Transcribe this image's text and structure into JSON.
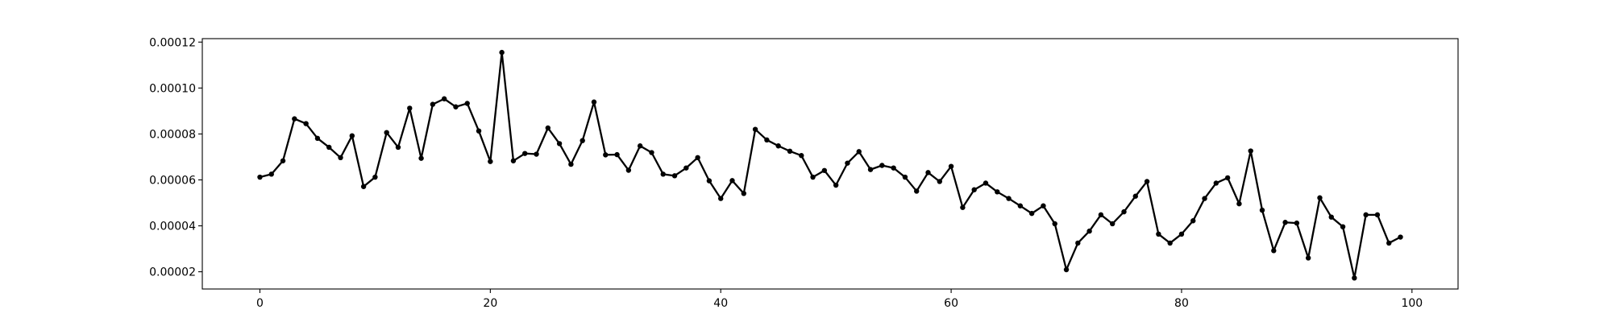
{
  "chart_data": {
    "type": "line",
    "title": "",
    "xlabel": "",
    "ylabel": "",
    "xlim": [
      -5,
      104
    ],
    "ylim": [
      1.25e-05,
      0.0001215
    ],
    "xticks": [
      0,
      20,
      40,
      60,
      80,
      100
    ],
    "xtick_labels": [
      "0",
      "20",
      "40",
      "60",
      "80",
      "100"
    ],
    "yticks": [
      2e-05,
      4e-05,
      6e-05,
      8e-05,
      0.0001,
      0.00012
    ],
    "ytick_labels": [
      "0.00002",
      "0.00004",
      "0.00006",
      "0.00008",
      "0.00010",
      "0.00012"
    ],
    "grid": false,
    "series": [
      {
        "color": "#000000",
        "marker": "circle",
        "x": [
          0,
          1,
          2,
          3,
          4,
          5,
          6,
          7,
          8,
          9,
          10,
          11,
          12,
          13,
          14,
          15,
          16,
          17,
          18,
          19,
          20,
          21,
          22,
          23,
          24,
          25,
          26,
          27,
          28,
          29,
          30,
          31,
          32,
          33,
          34,
          35,
          36,
          37,
          38,
          39,
          40,
          41,
          42,
          43,
          44,
          45,
          46,
          47,
          48,
          49,
          50,
          51,
          52,
          53,
          54,
          55,
          56,
          57,
          58,
          59,
          60,
          61,
          62,
          63,
          64,
          65,
          66,
          67,
          68,
          69,
          70,
          71,
          72,
          73,
          74,
          75,
          76,
          77,
          78,
          79,
          80,
          81,
          82,
          83,
          84,
          85,
          86,
          87,
          88,
          89,
          90,
          91,
          92,
          93,
          94,
          95,
          96,
          97,
          98,
          99
        ],
        "values": [
          6.12e-05,
          6.25e-05,
          6.83e-05,
          8.66e-05,
          8.45e-05,
          7.81e-05,
          7.42e-05,
          6.97e-05,
          7.92e-05,
          5.71e-05,
          6.12e-05,
          8.06e-05,
          7.42e-05,
          9.12e-05,
          6.94e-05,
          9.29e-05,
          9.53e-05,
          9.18e-05,
          9.33e-05,
          8.13e-05,
          6.8e-05,
          0.0001155,
          6.83e-05,
          7.15e-05,
          7.12e-05,
          8.26e-05,
          7.58e-05,
          6.68e-05,
          7.71e-05,
          9.39e-05,
          7.09e-05,
          7.1e-05,
          6.42e-05,
          7.48e-05,
          7.19e-05,
          6.25e-05,
          6.18e-05,
          6.52e-05,
          6.97e-05,
          5.96e-05,
          5.19e-05,
          5.97e-05,
          5.41e-05,
          8.2e-05,
          7.74e-05,
          7.48e-05,
          7.25e-05,
          7.06e-05,
          6.12e-05,
          6.41e-05,
          5.77e-05,
          6.73e-05,
          7.23e-05,
          6.45e-05,
          6.63e-05,
          6.52e-05,
          6.12e-05,
          5.51e-05,
          6.32e-05,
          5.93e-05,
          6.59e-05,
          4.8e-05,
          5.57e-05,
          5.86e-05,
          5.48e-05,
          5.19e-05,
          4.87e-05,
          4.54e-05,
          4.87e-05,
          4.09e-05,
          2.09e-05,
          3.25e-05,
          3.77e-05,
          4.48e-05,
          4.09e-05,
          4.61e-05,
          5.29e-05,
          5.93e-05,
          3.64e-05,
          3.25e-05,
          3.64e-05,
          4.22e-05,
          5.19e-05,
          5.86e-05,
          6.09e-05,
          4.96e-05,
          7.26e-05,
          4.68e-05,
          2.92e-05,
          4.15e-05,
          4.12e-05,
          2.6e-05,
          5.22e-05,
          4.38e-05,
          3.96e-05,
          1.73e-05,
          4.48e-05,
          4.48e-05,
          3.25e-05,
          3.51e-05
        ]
      }
    ]
  }
}
